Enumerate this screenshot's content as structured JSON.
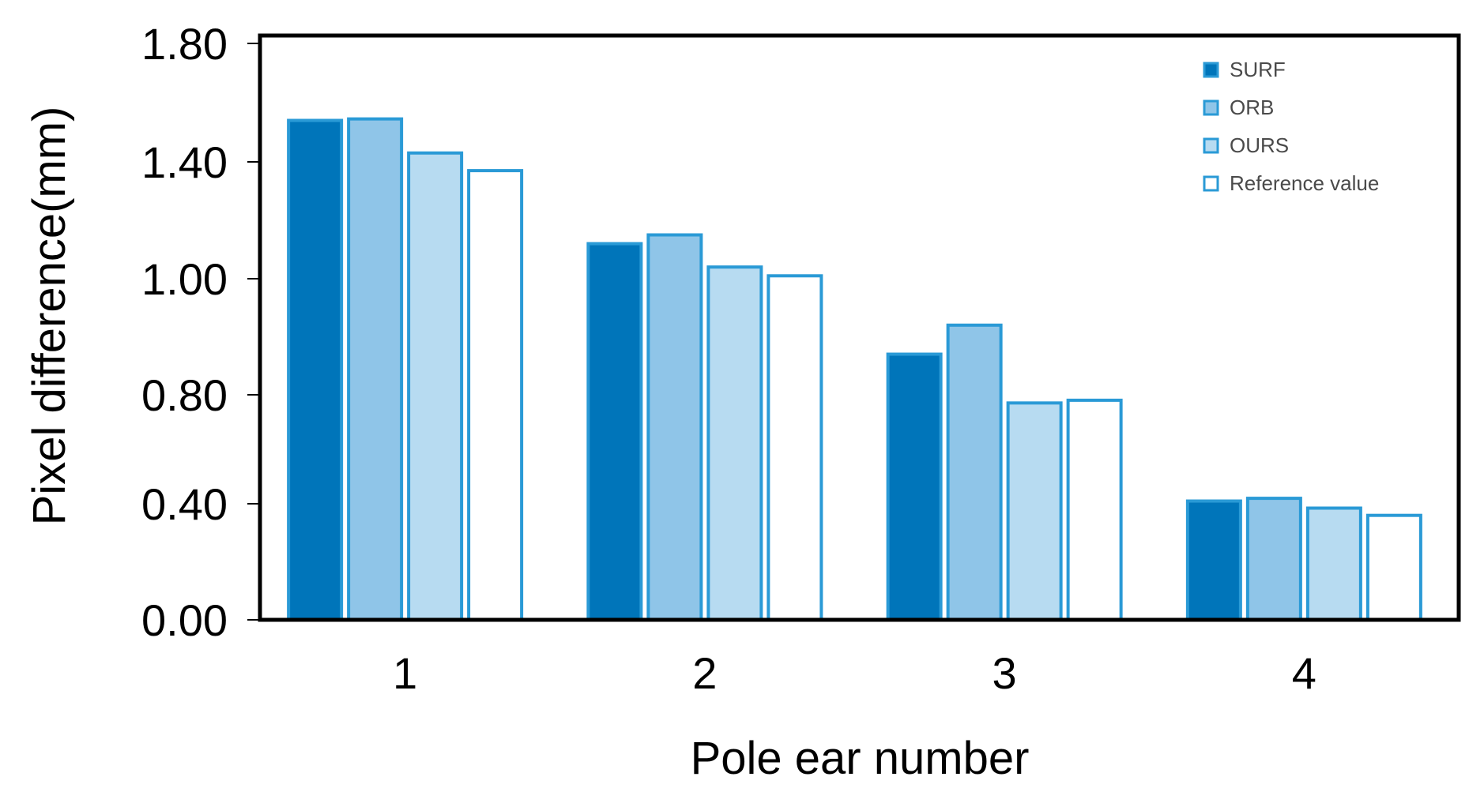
{
  "chart_data": {
    "type": "bar",
    "title": "",
    "xlabel": "Pole ear number",
    "ylabel": "Pixel difference(mm)",
    "categories": [
      "1",
      "2",
      "3",
      "4"
    ],
    "ylim": [
      0,
      1.8
    ],
    "y_scale": "piecewise",
    "y_ticks": [
      {
        "label": "0.00",
        "value": 0.0
      },
      {
        "label": "0.40",
        "value": 0.4
      },
      {
        "label": "0.80",
        "value": 0.8
      },
      {
        "label": "1.00",
        "value": 1.0
      },
      {
        "label": "1.40",
        "value": 1.4
      },
      {
        "label": "1.80",
        "value": 1.8
      }
    ],
    "grid": false,
    "legend_position": "top-right",
    "series": [
      {
        "name": "SURF",
        "values": [
          1.54,
          1.12,
          0.87,
          0.41
        ]
      },
      {
        "name": "ORB",
        "values": [
          1.545,
          1.15,
          0.92,
          0.42
        ]
      },
      {
        "name": "OURS",
        "values": [
          1.43,
          1.04,
          0.77,
          0.385
        ]
      },
      {
        "name": "Reference value",
        "values": [
          1.37,
          1.01,
          0.78,
          0.36
        ]
      }
    ],
    "colors": {
      "SURF": "#0075ba",
      "ORB": "#8fc5e8",
      "OURS": "#b7dbf1",
      "Reference value": "#ffffff",
      "bar_outline": "#2a9ad6",
      "axis": "#000000"
    }
  }
}
